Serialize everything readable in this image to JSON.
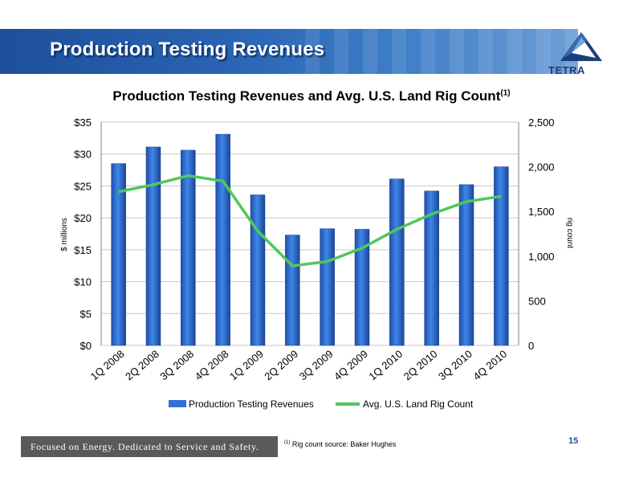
{
  "header": {
    "title": "Production Testing Revenues"
  },
  "logo": {
    "text": "TETRA"
  },
  "footer": {
    "tagline": "Focused on Energy. Dedicated to Service and Safety.",
    "footnote_mark": "(1)",
    "footnote_text": " Rig count source: Baker Hughes",
    "page_number": "15"
  },
  "colors": {
    "bar": "#2f6fd6",
    "line": "#4fc85a",
    "header": "#1d4f9c"
  },
  "chart_data": {
    "type": "bar",
    "title": "Production Testing Revenues and Avg. U.S. Land Rig Count",
    "title_superscript": "(1)",
    "ylabel": "$ millions",
    "y2label": "rig count",
    "categories": [
      "1Q 2008",
      "2Q 2008",
      "3Q 2008",
      "4Q 2008",
      "1Q 2009",
      "2Q 2009",
      "3Q 2009",
      "4Q 2009",
      "1Q 2010",
      "2Q 2010",
      "3Q 2010",
      "4Q 2010"
    ],
    "ylim": [
      0,
      35
    ],
    "y2lim": [
      0,
      2500
    ],
    "yticks": [
      "$0",
      "$5",
      "$10",
      "$15",
      "$20",
      "$25",
      "$30",
      "$35"
    ],
    "y2ticks": [
      "0",
      "500",
      "1,000",
      "1,500",
      "2,000",
      "2,500"
    ],
    "series": [
      {
        "name": "Production Testing Revenues",
        "type": "bar",
        "axis": "left",
        "values": [
          28.5,
          31.1,
          30.6,
          33.1,
          23.6,
          17.3,
          18.3,
          18.2,
          26.1,
          24.2,
          25.2,
          28.0
        ]
      },
      {
        "name": "Avg. U.S. Land Rig Count",
        "type": "line",
        "axis": "right",
        "values": [
          1720,
          1800,
          1900,
          1840,
          1280,
          890,
          940,
          1090,
          1300,
          1470,
          1610,
          1670
        ]
      }
    ],
    "grid": true,
    "legend": "bottom"
  }
}
